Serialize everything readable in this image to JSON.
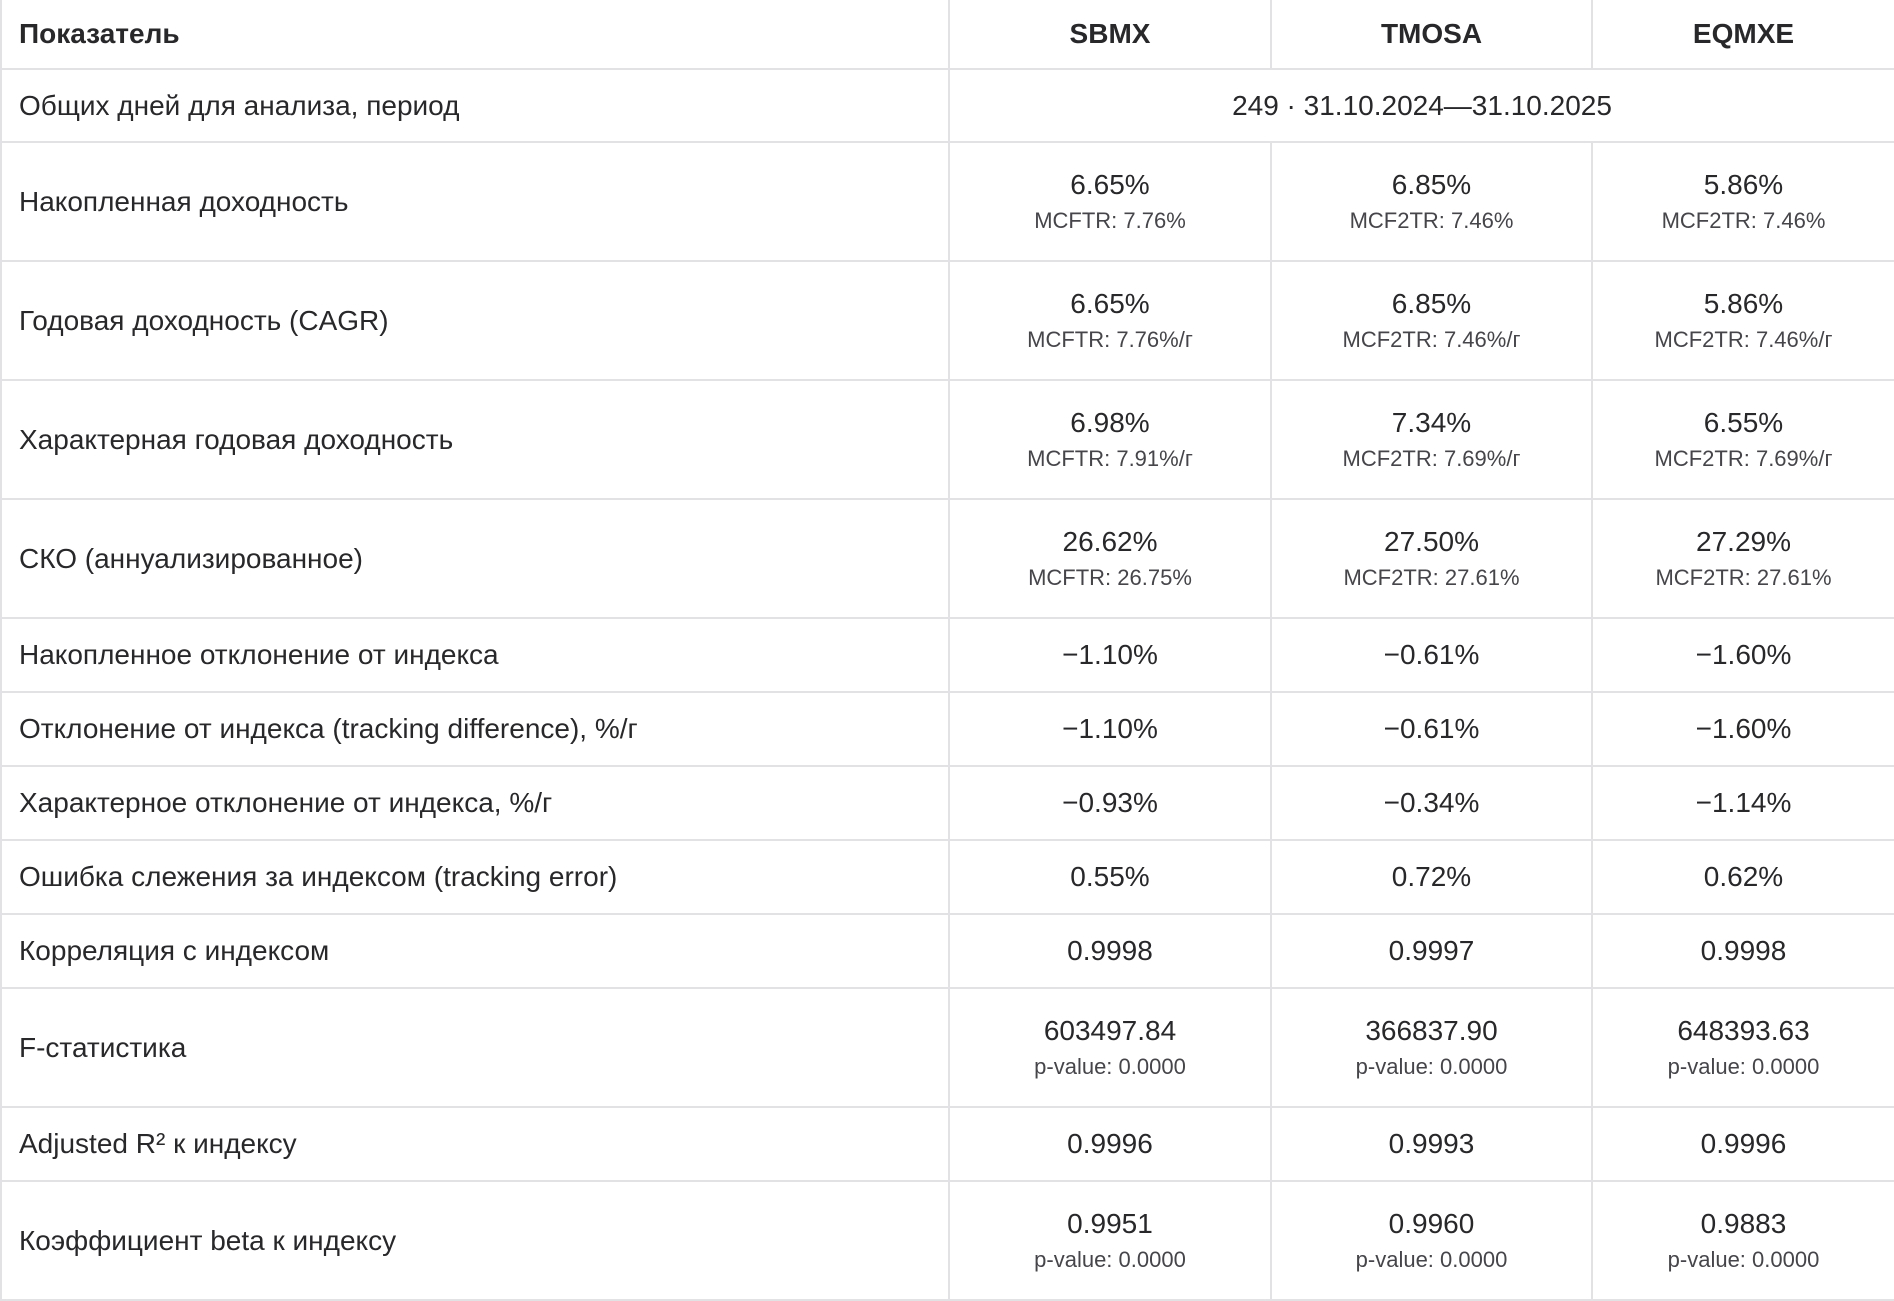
{
  "theme": {
    "text_color": "#28282b",
    "sub_text_color": "#45454a",
    "border_color": "#e2e2e5",
    "background_color": "#ffffff"
  },
  "table": {
    "header": {
      "metric": "Показатель",
      "columns": [
        "SBMX",
        "TMOSA",
        "EQMXE"
      ]
    },
    "period_row": {
      "label": "Общих дней для анализа, период",
      "value": "249 · 31.10.2024—31.10.2025"
    },
    "rows": [
      {
        "label": "Накопленная доходность",
        "values": [
          {
            "main": "6.65%",
            "sub": "MCFTR: 7.76%"
          },
          {
            "main": "6.85%",
            "sub": "MCF2TR: 7.46%"
          },
          {
            "main": "5.86%",
            "sub": "MCF2TR: 7.46%"
          }
        ]
      },
      {
        "label": "Годовая доходность (CAGR)",
        "values": [
          {
            "main": "6.65%",
            "sub": "MCFTR: 7.76%/г"
          },
          {
            "main": "6.85%",
            "sub": "MCF2TR: 7.46%/г"
          },
          {
            "main": "5.86%",
            "sub": "MCF2TR: 7.46%/г"
          }
        ]
      },
      {
        "label": "Характерная годовая доходность",
        "values": [
          {
            "main": "6.98%",
            "sub": "MCFTR: 7.91%/г"
          },
          {
            "main": "7.34%",
            "sub": "MCF2TR: 7.69%/г"
          },
          {
            "main": "6.55%",
            "sub": "MCF2TR: 7.69%/г"
          }
        ]
      },
      {
        "label": "СКО (аннуализированное)",
        "values": [
          {
            "main": "26.62%",
            "sub": "MCFTR: 26.75%"
          },
          {
            "main": "27.50%",
            "sub": "MCF2TR: 27.61%"
          },
          {
            "main": "27.29%",
            "sub": "MCF2TR: 27.61%"
          }
        ]
      },
      {
        "label": "Накопленное отклонение от индекса",
        "values": [
          {
            "main": "−1.10%"
          },
          {
            "main": "−0.61%"
          },
          {
            "main": "−1.60%"
          }
        ]
      },
      {
        "label": "Отклонение от индекса (tracking difference), %/г",
        "values": [
          {
            "main": "−1.10%"
          },
          {
            "main": "−0.61%"
          },
          {
            "main": "−1.60%"
          }
        ]
      },
      {
        "label": "Характерное отклонение от индекса, %/г",
        "values": [
          {
            "main": "−0.93%"
          },
          {
            "main": "−0.34%"
          },
          {
            "main": "−1.14%"
          }
        ]
      },
      {
        "label": "Ошибка слежения за индексом (tracking error)",
        "values": [
          {
            "main": "0.55%"
          },
          {
            "main": "0.72%"
          },
          {
            "main": "0.62%"
          }
        ]
      },
      {
        "label": "Корреляция с индексом",
        "values": [
          {
            "main": "0.9998"
          },
          {
            "main": "0.9997"
          },
          {
            "main": "0.9998"
          }
        ]
      },
      {
        "label": "F-статистика",
        "values": [
          {
            "main": "603497.84",
            "sub": "p-value: 0.0000"
          },
          {
            "main": "366837.90",
            "sub": "p-value: 0.0000"
          },
          {
            "main": "648393.63",
            "sub": "p-value: 0.0000"
          }
        ]
      },
      {
        "label": "Adjusted R² к индексу",
        "values": [
          {
            "main": "0.9996"
          },
          {
            "main": "0.9993"
          },
          {
            "main": "0.9996"
          }
        ]
      },
      {
        "label": "Коэффициент beta к индексу",
        "values": [
          {
            "main": "0.9951",
            "sub": "p-value: 0.0000"
          },
          {
            "main": "0.9960",
            "sub": "p-value: 0.0000"
          },
          {
            "main": "0.9883",
            "sub": "p-value: 0.0000"
          }
        ]
      }
    ]
  }
}
